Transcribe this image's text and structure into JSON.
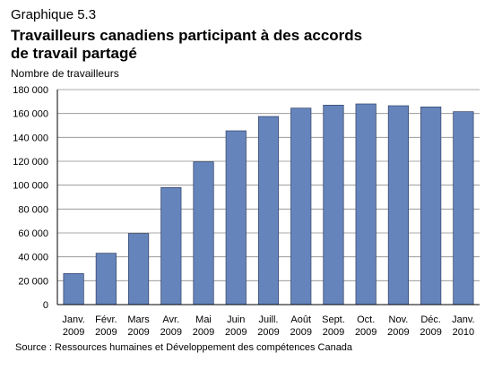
{
  "header": {
    "kicker": "Graphique 5.3",
    "title_line1": "Travailleurs canadiens participant à des accords",
    "title_line2": "de travail partagé"
  },
  "source": "Source : Ressources humaines et Développement des compétences Canada",
  "chart_data": {
    "type": "bar",
    "ylabel": "Nombre de travailleurs",
    "ylim": [
      0,
      180000
    ],
    "yticks": [
      0,
      20000,
      40000,
      60000,
      80000,
      100000,
      120000,
      140000,
      160000,
      180000
    ],
    "ytick_labels": [
      "0",
      "20 000",
      "40 000",
      "60 000",
      "80 000",
      "100 000",
      "120 000",
      "140 000",
      "160 000",
      "180 000"
    ],
    "grid": true,
    "bar_color": "#6584bb",
    "categories": [
      [
        "Janv.",
        "2009"
      ],
      [
        "Févr.",
        "2009"
      ],
      [
        "Mars",
        "2009"
      ],
      [
        "Avr.",
        "2009"
      ],
      [
        "Mai",
        "2009"
      ],
      [
        "Juin",
        "2009"
      ],
      [
        "Juill.",
        "2009"
      ],
      [
        "Août",
        "2009"
      ],
      [
        "Sept.",
        "2009"
      ],
      [
        "Oct.",
        "2009"
      ],
      [
        "Nov.",
        "2009"
      ],
      [
        "Déc.",
        "2009"
      ],
      [
        "Janv.",
        "2010"
      ]
    ],
    "values": [
      26000,
      43000,
      59500,
      98000,
      119500,
      145500,
      157500,
      164500,
      167000,
      168000,
      166500,
      165500,
      161500
    ]
  }
}
